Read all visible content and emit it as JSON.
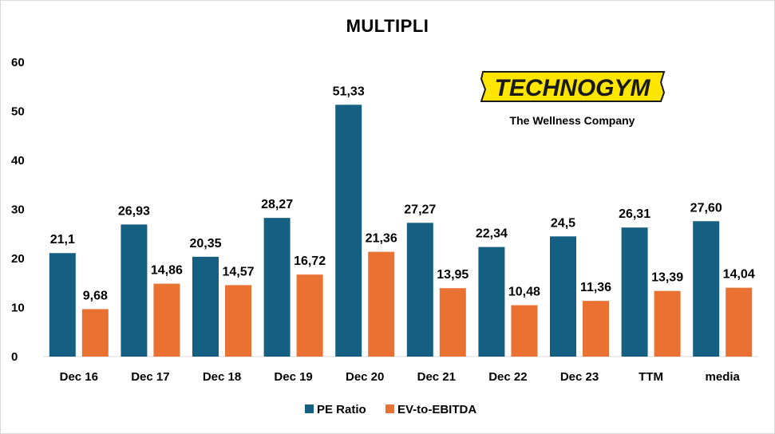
{
  "chart_data": {
    "type": "bar",
    "title": "MULTIPLI",
    "categories": [
      "Dec 16",
      "Dec 17",
      "Dec 18",
      "Dec 19",
      "Dec 20",
      "Dec 21",
      "Dec 22",
      "Dec 23",
      "TTM",
      "media"
    ],
    "series": [
      {
        "name": "PE Ratio",
        "color": "#156082",
        "values": [
          21.1,
          26.93,
          20.35,
          28.27,
          51.33,
          27.27,
          22.34,
          24.5,
          26.31,
          27.6
        ],
        "labels": [
          "21,1",
          "26,93",
          "20,35",
          "28,27",
          "51,33",
          "27,27",
          "22,34",
          "24,5",
          "26,31",
          "27,60"
        ]
      },
      {
        "name": "EV-to-EBITDA",
        "color": "#E97132",
        "values": [
          9.68,
          14.86,
          14.57,
          16.72,
          21.36,
          13.95,
          10.48,
          11.36,
          13.39,
          14.04
        ],
        "labels": [
          "9,68",
          "14,86",
          "14,57",
          "16,72",
          "21,36",
          "13,95",
          "10,48",
          "11,36",
          "13,39",
          "14,04"
        ]
      }
    ],
    "ylim": [
      0,
      60
    ],
    "yticks": [
      "0",
      "10",
      "20",
      "30",
      "40",
      "50",
      "60"
    ],
    "grid": false,
    "legend": "bottom"
  },
  "logo": {
    "word": "TECHNOGYM",
    "tagline": "The Wellness Company",
    "color": "#FFE600"
  }
}
